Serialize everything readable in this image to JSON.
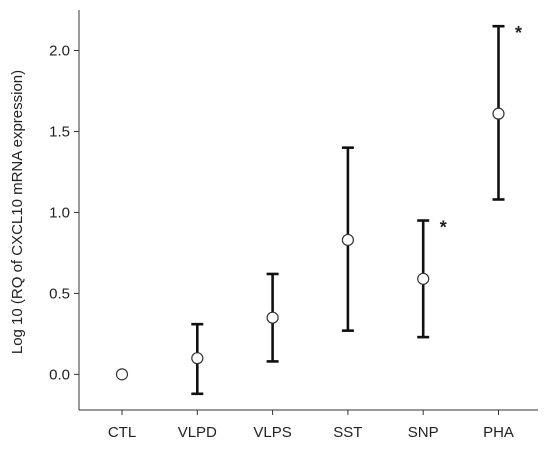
{
  "chart_data": {
    "type": "scatter",
    "title": "",
    "xlabel": "",
    "ylabel": "Log 10 (RQ of CXCL10 mRNA expression)",
    "categories": [
      "CTL",
      "VLPD",
      "VLPS",
      "SST",
      "SNP",
      "PHA"
    ],
    "series": [
      {
        "values": [
          0.0,
          0.1,
          0.35,
          0.83,
          0.59,
          1.61
        ],
        "error_low": [
          null,
          -0.12,
          0.08,
          0.27,
          0.23,
          1.08
        ],
        "error_high": [
          null,
          0.31,
          0.62,
          1.4,
          0.95,
          2.15
        ]
      }
    ],
    "annotations": [
      "",
      "",
      "",
      "",
      "*",
      "*"
    ],
    "ylim": [
      -0.22,
      2.25
    ],
    "yticks": [
      "0.0",
      "0.5",
      "1.0",
      "1.5",
      "2.0"
    ],
    "ytick_values": [
      0.0,
      0.5,
      1.0,
      1.5,
      2.0
    ],
    "grid": false,
    "colors": {
      "axis": "#333333",
      "errorbar": "#111111",
      "marker_fill": "#ffffff",
      "marker_stroke": "#333333"
    }
  }
}
